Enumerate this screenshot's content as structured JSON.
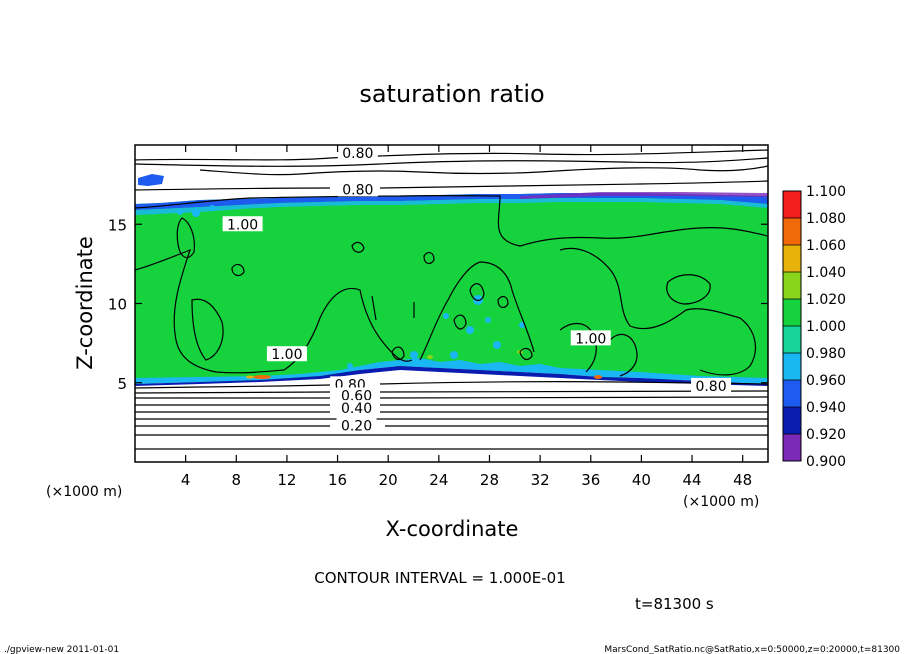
{
  "chart_data": {
    "type": "heatmap",
    "title": "saturation ratio",
    "xlabel": "X-coordinate",
    "ylabel": "Z-coordinate",
    "x_unit_left": "(×1000 m)",
    "x_unit_right": "(×1000 m)",
    "xlim": [
      0,
      50
    ],
    "ylim": [
      0,
      20
    ],
    "x_ticks": [
      4,
      8,
      12,
      16,
      20,
      24,
      28,
      32,
      36,
      40,
      44,
      48
    ],
    "y_ticks": [
      5,
      10,
      15
    ],
    "colorbar": {
      "levels": [
        "0.900",
        "0.920",
        "0.940",
        "0.960",
        "0.980",
        "1.000",
        "1.020",
        "1.040",
        "1.060",
        "1.080",
        "1.100"
      ],
      "colors": [
        "#7b2ab8",
        "#0a1bb0",
        "#1e5cf0",
        "#19b8f2",
        "#18d49c",
        "#16d23c",
        "#8ad51c",
        "#e8b20c",
        "#f06a0a",
        "#f01e1e",
        "#f58a8a"
      ]
    },
    "contour_labels": [
      {
        "text": "0.80",
        "x": 17.6,
        "z": 19.5
      },
      {
        "text": "0.80",
        "x": 17.6,
        "z": 17.2
      },
      {
        "text": "1.00",
        "x": 8.5,
        "z": 15.0
      },
      {
        "text": "1.00",
        "x": 12.0,
        "z": 6.8
      },
      {
        "text": "1.00",
        "x": 36.0,
        "z": 7.8
      },
      {
        "text": "0.80",
        "x": 17.0,
        "z": 4.9
      },
      {
        "text": "0.80",
        "x": 45.5,
        "z": 4.8
      },
      {
        "text": "0.60",
        "x": 17.5,
        "z": 4.2
      },
      {
        "text": "0.40",
        "x": 17.5,
        "z": 3.4
      },
      {
        "text": "0.20",
        "x": 17.5,
        "z": 2.3
      }
    ],
    "contour_interval_text": "CONTOUR INTERVAL = 1.000E-01",
    "time_text": "t=81300 s"
  },
  "footer": {
    "left": "./gpview-new   2011-01-01",
    "right": "MarsCond_SatRatio.nc@SatRatio,x=0:50000,z=0:20000,t=81300"
  }
}
